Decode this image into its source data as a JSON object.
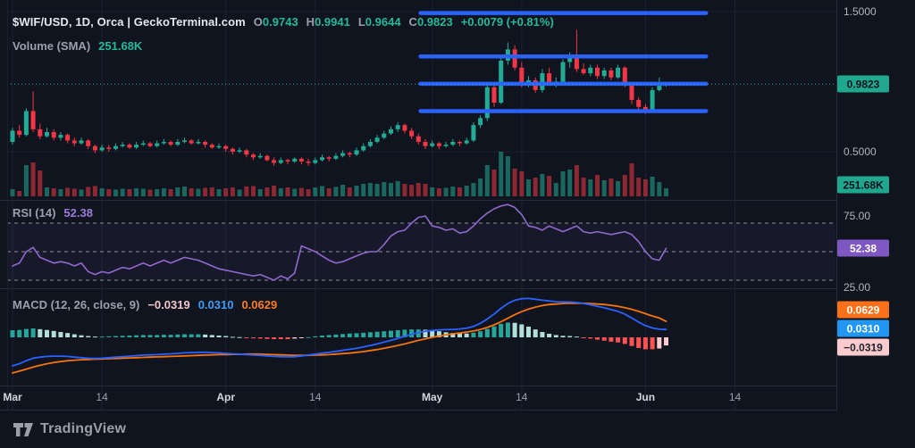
{
  "header": {
    "symbol_line": "$WIF/USD, 1D, Orca | GeckoTerminal.com",
    "ohlc": {
      "o_label": "O",
      "o": "0.9743",
      "h_label": "H",
      "h": "0.9941",
      "l_label": "L",
      "l": "0.9644",
      "c_label": "C",
      "c": "0.9823",
      "change": "+0.0079 (+0.81%)"
    },
    "volume_label": "Volume (SMA)",
    "volume_value": "251.68K"
  },
  "rsi_legend": {
    "label": "RSI (14)",
    "value": "52.38"
  },
  "macd_legend": {
    "label": "MACD (12, 26, close, 9)",
    "hist": "−0.0319",
    "macd": "0.0310",
    "signal": "0.0629"
  },
  "footer": {
    "brand": "TradingView"
  },
  "colors": {
    "up": "#22ab94",
    "down": "#f23645",
    "level_blue": "#2962ff",
    "last_price_line": "#26b89a",
    "rsi_line": "#9069cf",
    "rsi_badge": "#7e57c2",
    "macd_line": "#2962ff",
    "signal_line": "#f7720d",
    "hist_pos": "#26a69a",
    "hist_pos_weak": "#b2dfdb",
    "hist_neg": "#ff5252",
    "hist_neg_weak": "#fccbcd",
    "badge_teal": "#1fa88d",
    "badge_orange": "#fb7018",
    "badge_blue": "#2196f3",
    "badge_pink": "#fccbcd",
    "grid": "#1b2130",
    "separator": "#262b38"
  },
  "price_axis": {
    "ticks": [
      {
        "label": "1.5000",
        "value": 1.5
      },
      {
        "label": "0.5000",
        "value": 0.5
      }
    ],
    "last_price_badge": {
      "label": "0.9823",
      "value": 0.9823
    },
    "volume_badge": {
      "label": "251.68K"
    }
  },
  "rsi_axis": {
    "ticks": [
      {
        "label": "75.00",
        "value": 75
      },
      {
        "label": "25.00",
        "value": 25
      }
    ],
    "badge": {
      "label": "52.38",
      "value": 52.38
    }
  },
  "macd_axis": {
    "badges": [
      {
        "label": "0.0629",
        "kind": "signal"
      },
      {
        "label": "0.0310",
        "kind": "macd"
      },
      {
        "label": "−0.0319",
        "kind": "hist"
      }
    ]
  },
  "time_axis": {
    "ticks": [
      {
        "label": "Mar",
        "index": 0,
        "major": true
      },
      {
        "label": "14",
        "index": 13,
        "major": false
      },
      {
        "label": "Apr",
        "index": 31,
        "major": true
      },
      {
        "label": "14",
        "index": 44,
        "major": false
      },
      {
        "label": "May",
        "index": 61,
        "major": true
      },
      {
        "label": "14",
        "index": 74,
        "major": false
      },
      {
        "label": "Jun",
        "index": 92,
        "major": true
      },
      {
        "label": "14",
        "index": 105,
        "major": false
      }
    ]
  },
  "chart_data": {
    "type": "candlestick",
    "symbol": "$WIF/USD",
    "interval": "1D",
    "source": "Orca | GeckoTerminal.com",
    "last_close": 0.9823,
    "price_range_ticks": [
      1.5,
      0.5
    ],
    "support_resistance_levels": {
      "prices": [
        1.49,
        1.18,
        0.985,
        0.79
      ],
      "from_index": 59.3,
      "to_index": 100.8
    },
    "ohlc": [
      [
        0.57,
        0.67,
        0.55,
        0.65
      ],
      [
        0.65,
        0.69,
        0.6,
        0.62
      ],
      [
        0.62,
        0.81,
        0.61,
        0.79
      ],
      [
        0.79,
        0.93,
        0.64,
        0.66
      ],
      [
        0.66,
        0.7,
        0.59,
        0.61
      ],
      [
        0.61,
        0.67,
        0.6,
        0.64
      ],
      [
        0.64,
        0.66,
        0.58,
        0.6
      ],
      [
        0.6,
        0.64,
        0.58,
        0.62
      ],
      [
        0.62,
        0.63,
        0.56,
        0.58
      ],
      [
        0.58,
        0.6,
        0.54,
        0.56
      ],
      [
        0.56,
        0.6,
        0.55,
        0.58
      ],
      [
        0.58,
        0.59,
        0.52,
        0.54
      ],
      [
        0.54,
        0.55,
        0.49,
        0.51
      ],
      [
        0.51,
        0.55,
        0.5,
        0.53
      ],
      [
        0.53,
        0.55,
        0.5,
        0.52
      ],
      [
        0.52,
        0.56,
        0.51,
        0.54
      ],
      [
        0.54,
        0.57,
        0.53,
        0.55
      ],
      [
        0.55,
        0.56,
        0.52,
        0.53
      ],
      [
        0.53,
        0.57,
        0.52,
        0.55
      ],
      [
        0.55,
        0.58,
        0.54,
        0.56
      ],
      [
        0.56,
        0.57,
        0.53,
        0.54
      ],
      [
        0.54,
        0.58,
        0.53,
        0.56
      ],
      [
        0.56,
        0.59,
        0.55,
        0.57
      ],
      [
        0.57,
        0.58,
        0.54,
        0.55
      ],
      [
        0.55,
        0.59,
        0.54,
        0.57
      ],
      [
        0.57,
        0.6,
        0.56,
        0.58
      ],
      [
        0.58,
        0.59,
        0.55,
        0.56
      ],
      [
        0.56,
        0.59,
        0.55,
        0.57
      ],
      [
        0.57,
        0.58,
        0.53,
        0.55
      ],
      [
        0.55,
        0.56,
        0.52,
        0.53
      ],
      [
        0.53,
        0.56,
        0.52,
        0.54
      ],
      [
        0.54,
        0.55,
        0.5,
        0.52
      ],
      [
        0.52,
        0.53,
        0.48,
        0.5
      ],
      [
        0.5,
        0.53,
        0.49,
        0.51
      ],
      [
        0.51,
        0.52,
        0.46,
        0.48
      ],
      [
        0.48,
        0.49,
        0.44,
        0.46
      ],
      [
        0.46,
        0.49,
        0.45,
        0.47
      ],
      [
        0.47,
        0.48,
        0.43,
        0.44
      ],
      [
        0.44,
        0.46,
        0.4,
        0.42
      ],
      [
        0.42,
        0.46,
        0.41,
        0.44
      ],
      [
        0.44,
        0.45,
        0.41,
        0.43
      ],
      [
        0.43,
        0.46,
        0.42,
        0.45
      ],
      [
        0.45,
        0.46,
        0.41,
        0.43
      ],
      [
        0.43,
        0.45,
        0.4,
        0.42
      ],
      [
        0.42,
        0.46,
        0.41,
        0.44
      ],
      [
        0.44,
        0.48,
        0.43,
        0.46
      ],
      [
        0.46,
        0.47,
        0.43,
        0.45
      ],
      [
        0.45,
        0.49,
        0.44,
        0.47
      ],
      [
        0.47,
        0.51,
        0.46,
        0.49
      ],
      [
        0.49,
        0.5,
        0.46,
        0.48
      ],
      [
        0.48,
        0.53,
        0.47,
        0.51
      ],
      [
        0.51,
        0.56,
        0.5,
        0.54
      ],
      [
        0.54,
        0.59,
        0.53,
        0.57
      ],
      [
        0.57,
        0.62,
        0.56,
        0.6
      ],
      [
        0.6,
        0.65,
        0.59,
        0.63
      ],
      [
        0.63,
        0.68,
        0.62,
        0.66
      ],
      [
        0.66,
        0.71,
        0.64,
        0.69
      ],
      [
        0.69,
        0.7,
        0.63,
        0.65
      ],
      [
        0.65,
        0.67,
        0.59,
        0.61
      ],
      [
        0.61,
        0.63,
        0.55,
        0.57
      ],
      [
        0.57,
        0.59,
        0.52,
        0.54
      ],
      [
        0.54,
        0.58,
        0.53,
        0.56
      ],
      [
        0.56,
        0.57,
        0.52,
        0.54
      ],
      [
        0.54,
        0.57,
        0.53,
        0.55
      ],
      [
        0.55,
        0.59,
        0.54,
        0.57
      ],
      [
        0.57,
        0.58,
        0.54,
        0.56
      ],
      [
        0.56,
        0.6,
        0.55,
        0.58
      ],
      [
        0.58,
        0.71,
        0.57,
        0.69
      ],
      [
        0.69,
        0.76,
        0.67,
        0.74
      ],
      [
        0.74,
        1.0,
        0.72,
        0.96
      ],
      [
        0.96,
        0.98,
        0.82,
        0.85
      ],
      [
        0.85,
        1.17,
        0.84,
        1.15
      ],
      [
        1.15,
        1.28,
        1.12,
        1.23
      ],
      [
        1.23,
        1.26,
        1.08,
        1.1
      ],
      [
        1.1,
        1.14,
        0.96,
        0.99
      ],
      [
        0.99,
        1.04,
        0.96,
        1.01
      ],
      [
        1.01,
        1.03,
        0.92,
        0.94
      ],
      [
        0.94,
        1.09,
        0.92,
        1.06
      ],
      [
        1.06,
        1.1,
        0.97,
        0.99
      ],
      [
        0.99,
        1.03,
        0.96,
        1.0
      ],
      [
        1.0,
        1.16,
        0.98,
        1.14
      ],
      [
        1.14,
        1.21,
        1.1,
        1.19
      ],
      [
        1.19,
        1.37,
        1.07,
        1.09
      ],
      [
        1.09,
        1.13,
        1.05,
        1.06
      ],
      [
        1.06,
        1.12,
        1.04,
        1.1
      ],
      [
        1.1,
        1.12,
        1.02,
        1.04
      ],
      [
        1.04,
        1.1,
        1.02,
        1.08
      ],
      [
        1.08,
        1.1,
        1.01,
        1.03
      ],
      [
        1.03,
        1.12,
        1.02,
        1.1
      ],
      [
        1.1,
        1.11,
        0.96,
        0.98
      ],
      [
        0.98,
        1.0,
        0.84,
        0.87
      ],
      [
        0.87,
        0.89,
        0.78,
        0.82
      ],
      [
        0.82,
        0.84,
        0.77,
        0.79
      ],
      [
        0.79,
        0.96,
        0.78,
        0.94
      ],
      [
        0.94,
        1.03,
        0.93,
        0.97
      ],
      [
        0.9743,
        0.9941,
        0.9644,
        0.9823
      ]
    ],
    "volume_k": [
      160,
      120,
      700,
      760,
      580,
      200,
      180,
      160,
      190,
      170,
      150,
      210,
      230,
      180,
      160,
      150,
      170,
      160,
      180,
      170,
      150,
      160,
      180,
      160,
      200,
      220,
      180,
      170,
      190,
      200,
      160,
      180,
      200,
      150,
      220,
      230,
      160,
      200,
      240,
      180,
      200,
      170,
      190,
      160,
      200,
      230,
      180,
      210,
      260,
      200,
      240,
      280,
      300,
      280,
      320,
      300,
      340,
      280,
      260,
      300,
      280,
      200,
      180,
      190,
      220,
      200,
      240,
      300,
      400,
      700,
      600,
      1000,
      900,
      620,
      560,
      380,
      420,
      500,
      460,
      300,
      560,
      600,
      700,
      420,
      380,
      480,
      360,
      400,
      340,
      480,
      740,
      420,
      380,
      440,
      320,
      180
    ],
    "volume_sma_k": 251.68,
    "rsi": {
      "period": 14,
      "last": 52.38,
      "bands": [
        70,
        50,
        30
      ],
      "axis_ticks": [
        75,
        25
      ],
      "values": [
        40,
        42,
        50,
        53,
        46,
        44,
        42,
        43,
        42,
        40,
        42,
        36,
        34,
        36,
        35,
        37,
        39,
        38,
        40,
        42,
        40,
        42,
        44,
        42,
        44,
        46,
        45,
        44,
        42,
        40,
        38,
        37,
        36,
        35,
        34,
        33,
        34,
        32,
        30,
        33,
        31,
        35,
        54,
        52,
        50,
        47,
        44,
        42,
        43,
        45,
        47,
        49,
        50,
        50,
        55,
        61,
        64,
        65,
        70,
        74,
        75,
        68,
        67,
        65,
        66,
        63,
        64,
        68,
        73,
        77,
        80,
        82,
        83,
        81,
        76,
        68,
        67,
        65,
        68,
        66,
        64,
        66,
        68,
        64,
        63,
        64,
        63,
        62,
        63,
        64,
        62,
        57,
        50,
        45,
        44,
        52.38
      ]
    },
    "macd": {
      "params": [
        12,
        26,
        "close",
        9
      ],
      "last": {
        "hist": -0.0319,
        "macd": 0.031,
        "signal": 0.0629
      },
      "macd_line": [
        -0.112,
        -0.104,
        -0.092,
        -0.082,
        -0.078,
        -0.075,
        -0.074,
        -0.074,
        -0.075,
        -0.078,
        -0.08,
        -0.082,
        -0.083,
        -0.082,
        -0.08,
        -0.078,
        -0.076,
        -0.074,
        -0.072,
        -0.07,
        -0.069,
        -0.068,
        -0.066,
        -0.065,
        -0.063,
        -0.061,
        -0.06,
        -0.059,
        -0.059,
        -0.06,
        -0.061,
        -0.063,
        -0.065,
        -0.066,
        -0.068,
        -0.07,
        -0.071,
        -0.073,
        -0.075,
        -0.076,
        -0.077,
        -0.076,
        -0.073,
        -0.07,
        -0.066,
        -0.062,
        -0.059,
        -0.055,
        -0.051,
        -0.047,
        -0.043,
        -0.038,
        -0.032,
        -0.026,
        -0.019,
        -0.012,
        -0.004,
        0.004,
        0.012,
        0.019,
        0.024,
        0.027,
        0.029,
        0.03,
        0.031,
        0.033,
        0.036,
        0.043,
        0.055,
        0.072,
        0.092,
        0.114,
        0.133,
        0.146,
        0.152,
        0.153,
        0.15,
        0.146,
        0.143,
        0.14,
        0.139,
        0.139,
        0.137,
        0.133,
        0.128,
        0.122,
        0.116,
        0.109,
        0.102,
        0.091,
        0.076,
        0.06,
        0.046,
        0.037,
        0.032,
        0.031
      ],
      "signal_line": [
        -0.14,
        -0.133,
        -0.125,
        -0.117,
        -0.11,
        -0.104,
        -0.099,
        -0.095,
        -0.092,
        -0.09,
        -0.088,
        -0.087,
        -0.086,
        -0.085,
        -0.084,
        -0.083,
        -0.082,
        -0.081,
        -0.08,
        -0.079,
        -0.078,
        -0.077,
        -0.076,
        -0.075,
        -0.074,
        -0.073,
        -0.072,
        -0.071,
        -0.07,
        -0.069,
        -0.068,
        -0.068,
        -0.067,
        -0.067,
        -0.066,
        -0.066,
        -0.066,
        -0.067,
        -0.068,
        -0.069,
        -0.07,
        -0.071,
        -0.071,
        -0.071,
        -0.07,
        -0.069,
        -0.068,
        -0.066,
        -0.064,
        -0.062,
        -0.059,
        -0.056,
        -0.052,
        -0.048,
        -0.043,
        -0.038,
        -0.032,
        -0.026,
        -0.019,
        -0.012,
        -0.006,
        0.0,
        0.005,
        0.01,
        0.014,
        0.017,
        0.021,
        0.025,
        0.031,
        0.039,
        0.049,
        0.061,
        0.075,
        0.089,
        0.101,
        0.111,
        0.119,
        0.125,
        0.129,
        0.131,
        0.133,
        0.134,
        0.134,
        0.134,
        0.133,
        0.131,
        0.129,
        0.126,
        0.122,
        0.117,
        0.11,
        0.102,
        0.093,
        0.084,
        0.076,
        0.0629
      ]
    }
  }
}
